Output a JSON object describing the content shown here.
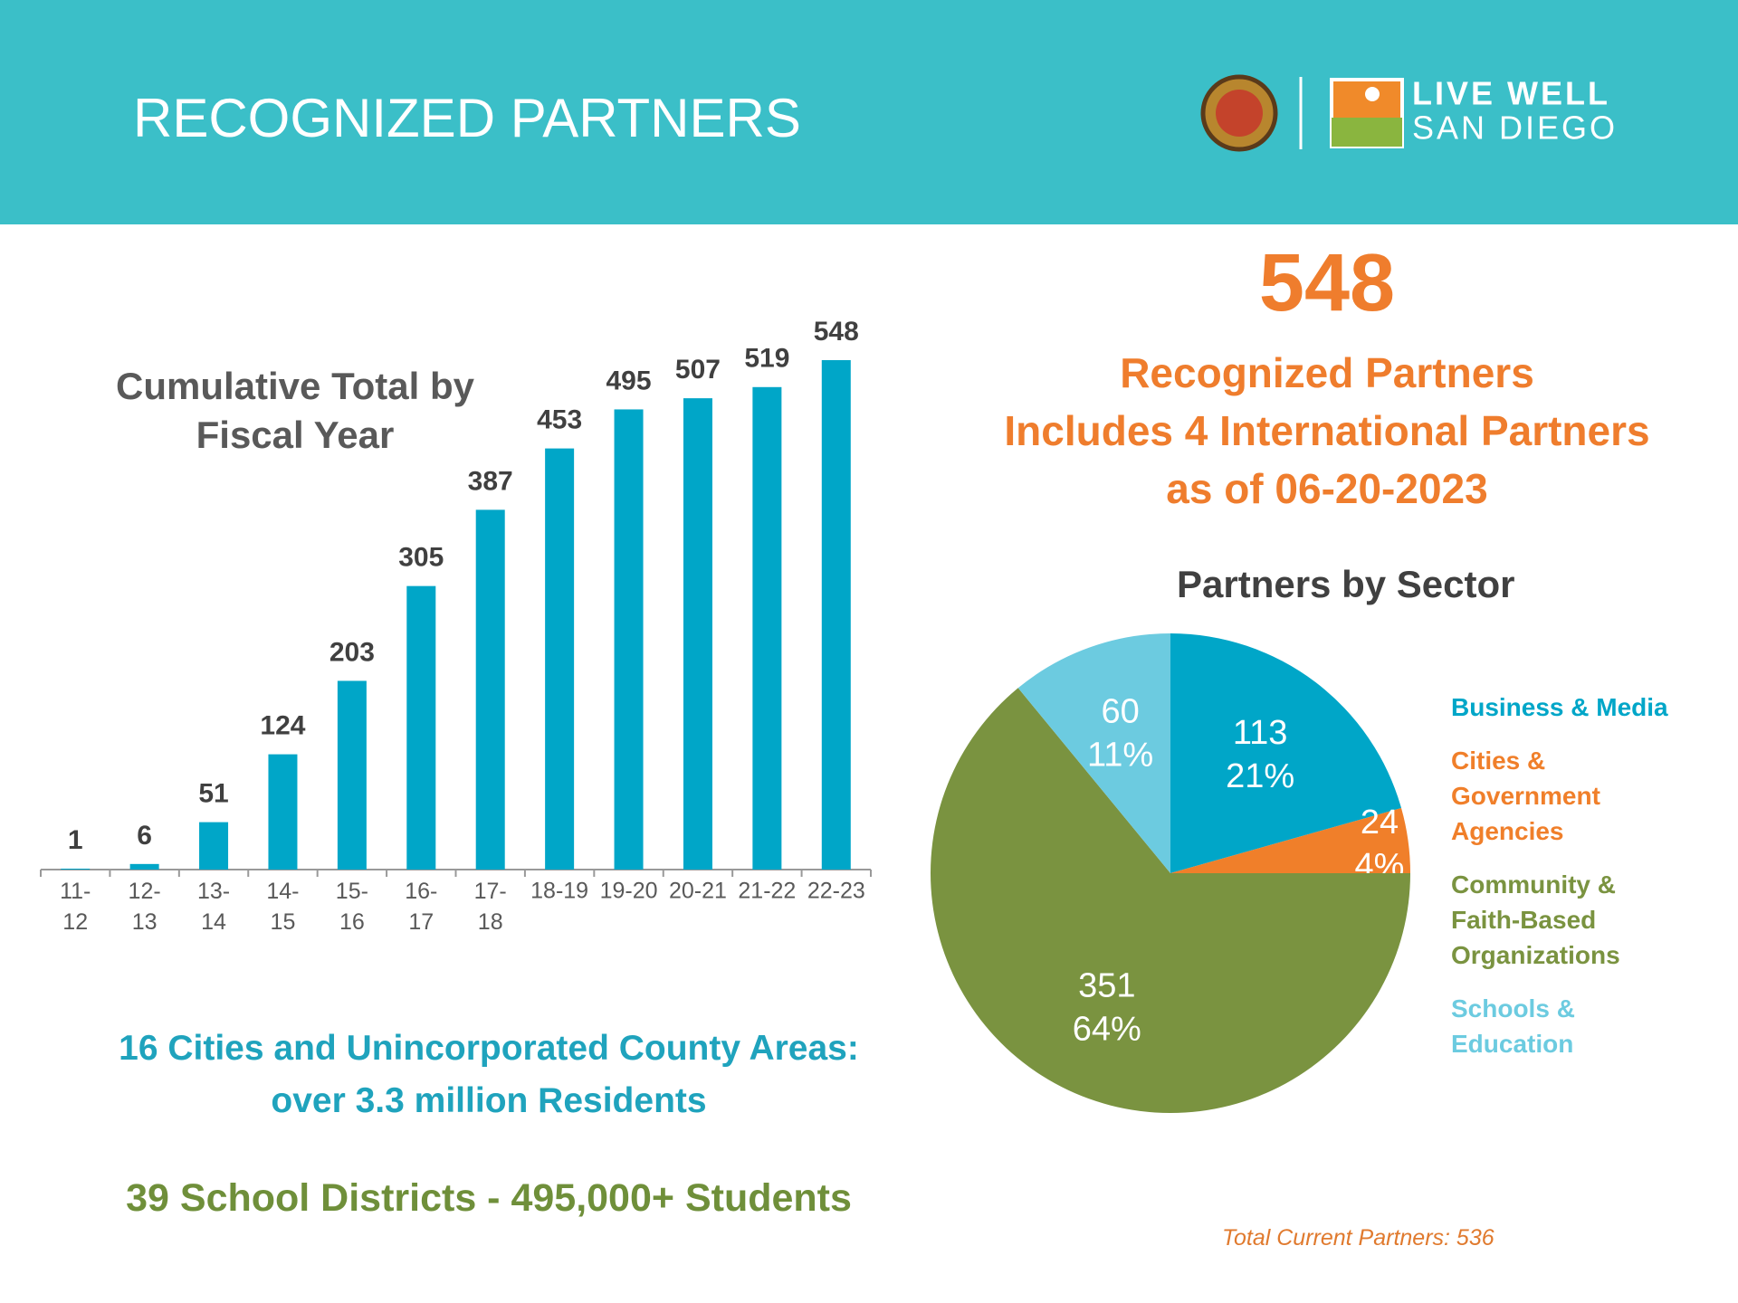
{
  "header": {
    "title": "RECOGNIZED PARTNERS",
    "logo_text": [
      "LIVE WELL",
      "SAN DIEGO"
    ]
  },
  "highlight": {
    "number": "548",
    "lines": [
      "Recognized Partners",
      "Includes 4 International Partners",
      "as of 06-20-2023"
    ]
  },
  "chart_data": [
    {
      "type": "bar",
      "title": "Cumulative Total by Fiscal Year",
      "categories": [
        "11-12",
        "12-13",
        "13-14",
        "14-15",
        "15-16",
        "16-17",
        "17-18",
        "18-19",
        "19-20",
        "20-21",
        "21-22",
        "22-23"
      ],
      "values": [
        1,
        6,
        51,
        124,
        203,
        305,
        387,
        453,
        495,
        507,
        519,
        548
      ],
      "color": "#00a6c8"
    },
    {
      "type": "pie",
      "title": "Partners by Sector",
      "categories": [
        "Business & Media",
        "Cities & Government Agencies",
        "Community & Faith-Based Organizations",
        "Schools & Education"
      ],
      "values": [
        113,
        24,
        351,
        60
      ],
      "percent_labels": [
        "21%",
        "4%",
        "64%",
        "11%"
      ],
      "colors": [
        "#00a6c8",
        "#f07f2a",
        "#7a9340",
        "#6ccbe0"
      ],
      "legend": "right"
    }
  ],
  "notes": {
    "cities": [
      "16 Cities and Unincorporated County Areas:",
      "over 3.3 million Residents"
    ],
    "schools": "39 School Districts - 495,000+ Students",
    "footer": "Total Current Partners: 536"
  }
}
